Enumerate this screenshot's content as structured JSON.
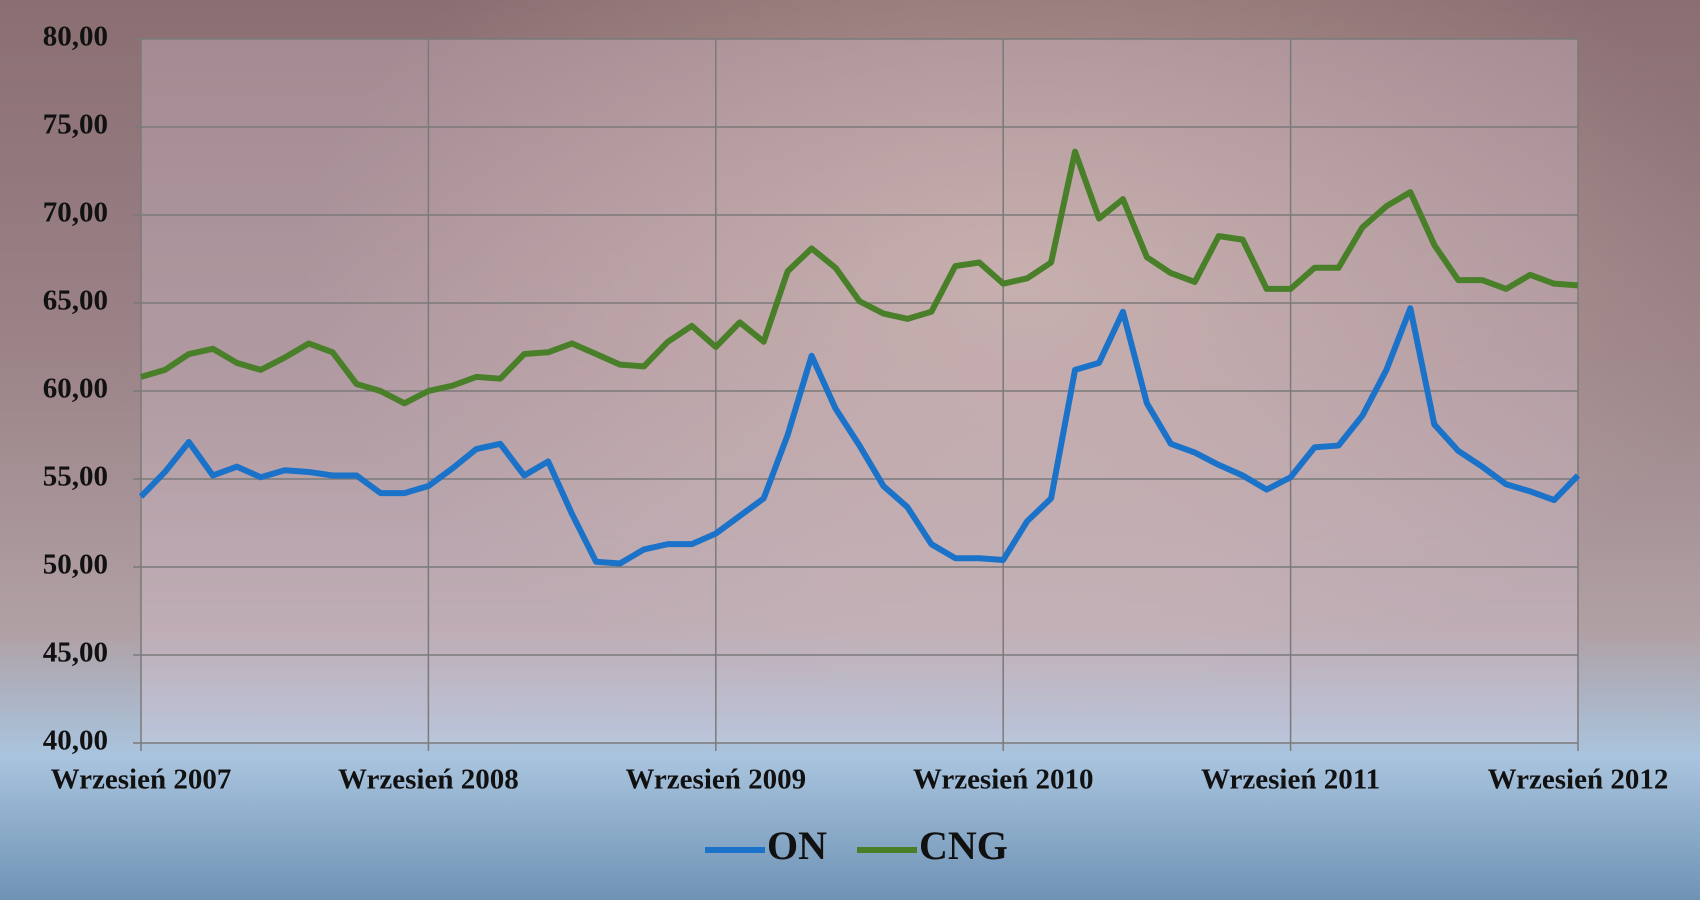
{
  "chart_data": {
    "type": "line",
    "categories": [
      "Wrzesień 2007",
      null,
      null,
      null,
      null,
      null,
      null,
      null,
      null,
      null,
      null,
      null,
      "Wrzesień 2008",
      null,
      null,
      null,
      null,
      null,
      null,
      null,
      null,
      null,
      null,
      null,
      "Wrzesień 2009",
      null,
      null,
      null,
      null,
      null,
      null,
      null,
      null,
      null,
      null,
      null,
      "Wrzesień 2010",
      null,
      null,
      null,
      null,
      null,
      null,
      null,
      null,
      null,
      null,
      null,
      "Wrzesień 2011",
      null,
      null,
      null,
      null,
      null,
      null,
      null,
      null,
      null,
      null,
      null,
      "Wrzesień 2012"
    ],
    "series": [
      {
        "name": "ON",
        "color": "#1b72c9",
        "values": [
          54.0,
          55.4,
          57.1,
          55.2,
          55.7,
          55.1,
          55.5,
          55.4,
          55.2,
          55.2,
          54.2,
          54.2,
          54.6,
          55.6,
          56.7,
          57.0,
          55.2,
          56.0,
          53.0,
          50.3,
          50.2,
          51.0,
          51.3,
          51.3,
          51.9,
          52.9,
          53.9,
          57.5,
          62.0,
          59.0,
          56.9,
          54.6,
          53.4,
          51.3,
          50.5,
          50.5,
          50.4,
          52.6,
          53.9,
          61.2,
          61.6,
          64.5,
          59.3,
          57.0,
          56.5,
          55.8,
          55.2,
          54.4,
          55.1,
          56.8,
          56.9,
          58.6,
          61.2,
          64.7,
          58.1,
          56.6,
          55.7,
          54.7,
          54.3,
          53.8,
          55.2
        ]
      },
      {
        "name": "CNG",
        "color": "#4a7f2a",
        "values": [
          60.8,
          61.2,
          62.1,
          62.4,
          61.6,
          61.2,
          61.9,
          62.7,
          62.2,
          60.4,
          60.0,
          59.3,
          60.0,
          60.3,
          60.8,
          60.7,
          62.1,
          62.2,
          62.7,
          62.1,
          61.5,
          61.4,
          62.8,
          63.7,
          62.5,
          63.9,
          62.8,
          66.8,
          68.1,
          67.0,
          65.1,
          64.4,
          64.1,
          64.5,
          67.1,
          67.3,
          66.1,
          66.4,
          67.3,
          73.6,
          69.8,
          70.9,
          67.6,
          66.7,
          66.2,
          68.8,
          68.6,
          65.8,
          65.8,
          67.0,
          67.0,
          69.3,
          70.5,
          71.3,
          68.3,
          66.3,
          66.3,
          65.8,
          66.6,
          66.1,
          66.0
        ]
      }
    ],
    "ylim": [
      40,
      80
    ],
    "yticks": [
      {
        "value": 40,
        "label": "40,00"
      },
      {
        "value": 45,
        "label": "45,00"
      },
      {
        "value": 50,
        "label": "50,00"
      },
      {
        "value": 55,
        "label": "55,00"
      },
      {
        "value": 60,
        "label": "60,00"
      },
      {
        "value": 65,
        "label": "65,00"
      },
      {
        "value": 70,
        "label": "70,00"
      },
      {
        "value": 75,
        "label": "75,00"
      },
      {
        "value": 80,
        "label": "80,00"
      }
    ],
    "grid": true,
    "legend": "bottom"
  }
}
